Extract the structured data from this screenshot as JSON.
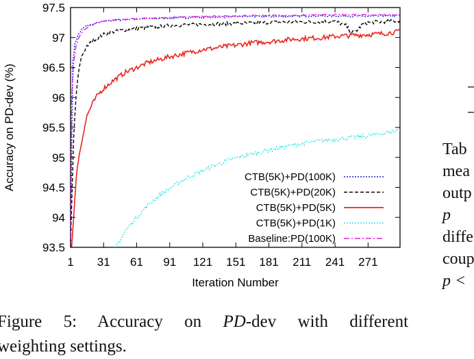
{
  "chart_data": {
    "type": "line",
    "xlabel": "Iteration Number",
    "ylabel": "Accuracy on PD-dev (%)",
    "xlim": [
      1,
      300
    ],
    "ylim": [
      93.5,
      97.5
    ],
    "x_ticks": [
      1,
      31,
      61,
      91,
      121,
      151,
      181,
      211,
      241,
      271
    ],
    "y_ticks": [
      "93.5",
      "94",
      "94.5",
      "95",
      "95.5",
      "96",
      "96.5",
      "97",
      "97.5"
    ],
    "grid": false,
    "legend_position": "bottom-right",
    "series": [
      {
        "name": "CTB(5K)+PD(100K)",
        "color": "#1c1cd6",
        "dash": "dotted",
        "x": [
          1,
          3,
          5,
          8,
          12,
          16,
          21,
          26,
          31,
          41,
          51,
          61,
          81,
          101,
          131,
          161,
          191,
          221,
          251,
          271,
          281,
          291,
          300
        ],
        "y": [
          93.5,
          96.6,
          96.9,
          97.05,
          97.15,
          97.2,
          97.22,
          97.25,
          97.27,
          97.29,
          97.3,
          97.31,
          97.32,
          97.33,
          97.34,
          97.35,
          97.35,
          97.36,
          97.36,
          97.35,
          97.36,
          97.36,
          97.37
        ]
      },
      {
        "name": "CTB(5K)+PD(20K)",
        "color": "#000000",
        "dash": "dashed",
        "x": [
          1,
          2,
          4,
          6,
          8,
          11,
          16,
          21,
          31,
          41,
          51,
          61,
          71,
          81,
          91,
          101,
          121,
          141,
          161,
          181,
          201,
          221,
          241,
          251,
          256,
          261,
          266,
          271,
          281,
          291,
          300
        ],
        "y": [
          93.5,
          94.2,
          95.4,
          96.0,
          96.4,
          96.7,
          96.85,
          96.95,
          97.05,
          97.1,
          97.13,
          97.15,
          97.17,
          97.18,
          97.2,
          97.21,
          97.22,
          97.23,
          97.24,
          97.25,
          97.26,
          97.26,
          97.27,
          97.2,
          97.08,
          97.12,
          97.22,
          97.25,
          97.26,
          97.27,
          97.28
        ]
      },
      {
        "name": "CTB(5K)+PD(5K)",
        "color": "#e8231d",
        "dash": "solid",
        "x": [
          2,
          4,
          7,
          10,
          13,
          16,
          21,
          26,
          31,
          41,
          51,
          61,
          71,
          81,
          91,
          101,
          111,
          121,
          131,
          141,
          151,
          161,
          171,
          181,
          191,
          201,
          211,
          221,
          231,
          241,
          251,
          261,
          271,
          281,
          291,
          300
        ],
        "y": [
          93.5,
          94.05,
          94.85,
          95.15,
          95.45,
          95.7,
          95.9,
          96.05,
          96.15,
          96.3,
          96.42,
          96.5,
          96.58,
          96.63,
          96.68,
          96.72,
          96.76,
          96.8,
          96.82,
          96.85,
          96.87,
          96.9,
          96.92,
          96.93,
          96.95,
          96.97,
          96.98,
          96.99,
          97.0,
          97.02,
          97.03,
          97.04,
          97.05,
          97.06,
          97.08,
          97.1
        ]
      },
      {
        "name": "CTB(5K)+PD(1K)",
        "color": "#2ee6e6",
        "dash": "dotted",
        "x": [
          41,
          46,
          51,
          61,
          71,
          81,
          91,
          101,
          111,
          121,
          131,
          141,
          151,
          161,
          171,
          181,
          191,
          201,
          211,
          221,
          231,
          241,
          251,
          261,
          271,
          281,
          291,
          300
        ],
        "y": [
          93.5,
          93.62,
          93.78,
          94.0,
          94.2,
          94.36,
          94.48,
          94.6,
          94.7,
          94.78,
          94.86,
          94.93,
          94.99,
          95.04,
          95.08,
          95.12,
          95.16,
          95.2,
          95.23,
          95.26,
          95.28,
          95.3,
          95.32,
          95.34,
          95.36,
          95.39,
          95.42,
          95.47
        ]
      },
      {
        "name": "Baseline:PD(100K)",
        "color": "#e01fe0",
        "dash": "dashdot",
        "x": [
          1,
          2,
          4,
          6,
          9,
          13,
          17,
          21,
          26,
          31,
          41,
          51,
          61,
          71,
          81,
          101,
          121,
          151,
          181,
          211,
          241,
          271,
          300
        ],
        "y": [
          93.5,
          96.0,
          96.6,
          96.85,
          97.02,
          97.12,
          97.18,
          97.22,
          97.25,
          97.27,
          97.29,
          97.3,
          97.31,
          97.32,
          97.33,
          97.34,
          97.35,
          97.36,
          97.37,
          97.37,
          97.38,
          97.38,
          97.38
        ]
      }
    ]
  },
  "caption": {
    "line1_prefix": "Figure 5:",
    "line1_text": "Accuracy on ",
    "line1_italic": "PD",
    "line1_suffix": "-dev with different",
    "line2": "weighting settings."
  },
  "side_text": [
    "Tab",
    "mea",
    "outp",
    "p",
    "diffe",
    "coup",
    "p <"
  ]
}
